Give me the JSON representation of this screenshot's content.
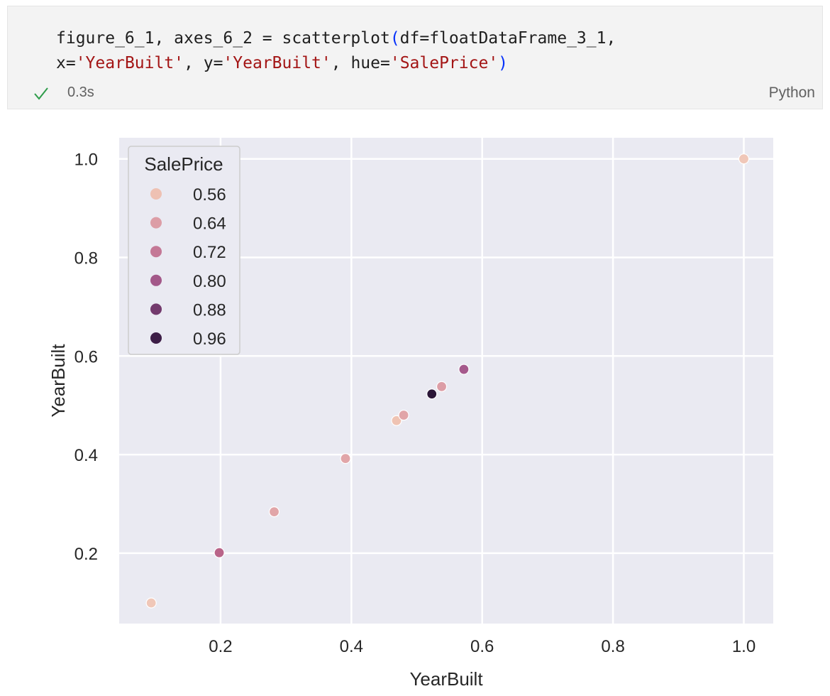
{
  "cell": {
    "code": {
      "line1": [
        {
          "t": "figure_6_1, axes_6_2 = scatterplot",
          "c": "plain"
        },
        {
          "t": "(",
          "c": "paren"
        },
        {
          "t": "df=floatDataFrame_3_1,",
          "c": "plain"
        }
      ],
      "line2": [
        {
          "t": "x=",
          "c": "plain"
        },
        {
          "t": "'YearBuilt'",
          "c": "str"
        },
        {
          "t": ", y=",
          "c": "plain"
        },
        {
          "t": "'YearBuilt'",
          "c": "str"
        },
        {
          "t": ", hue=",
          "c": "plain"
        },
        {
          "t": "'SalePrice'",
          "c": "str"
        },
        {
          "t": ")",
          "c": "paren"
        }
      ]
    },
    "status_icon": "check-icon",
    "execution_time": "0.3s",
    "language": "Python"
  },
  "colors": {
    "code_string": "#a31515",
    "code_paren": "#0431fa",
    "status_check": "#2e9c4a",
    "plot_background": "#eaeaf2",
    "grid": "#ffffff"
  },
  "chart_data": {
    "type": "scatter",
    "title": "",
    "xlabel": "YearBuilt",
    "ylabel": "YearBuilt",
    "xlim": [
      0.045,
      1.045
    ],
    "ylim": [
      0.0572,
      1.0428
    ],
    "xticks": [
      0.2,
      0.4,
      0.6,
      0.8,
      1.0
    ],
    "xtick_labels": [
      "0.2",
      "0.4",
      "0.6",
      "0.8",
      "1.0"
    ],
    "yticks": [
      0.2,
      0.4,
      0.6,
      0.8,
      1.0
    ],
    "ytick_labels": [
      "0.2",
      "0.4",
      "0.6",
      "0.8",
      "1.0"
    ],
    "grid": true,
    "hue": "SalePrice",
    "legend": {
      "title": "SalePrice",
      "placement": "top-left",
      "entries": [
        {
          "label": "0.56",
          "color": "#eec1b3"
        },
        {
          "label": "0.64",
          "color": "#dc9da6"
        },
        {
          "label": "0.72",
          "color": "#c47896"
        },
        {
          "label": "0.80",
          "color": "#a35889"
        },
        {
          "label": "0.88",
          "color": "#733a6d"
        },
        {
          "label": "0.96",
          "color": "#3d1e47"
        }
      ]
    },
    "points": [
      {
        "x": 0.094,
        "y": 0.099,
        "hue": 0.55,
        "color": "#f0c7b8"
      },
      {
        "x": 0.198,
        "y": 0.201,
        "hue": 0.74,
        "color": "#b96489"
      },
      {
        "x": 0.282,
        "y": 0.284,
        "hue": 0.62,
        "color": "#e1a5a8"
      },
      {
        "x": 0.391,
        "y": 0.392,
        "hue": 0.62,
        "color": "#e1a5a8"
      },
      {
        "x": 0.469,
        "y": 0.469,
        "hue": 0.56,
        "color": "#efc3b3"
      },
      {
        "x": 0.48,
        "y": 0.48,
        "hue": 0.62,
        "color": "#e1a5a8"
      },
      {
        "x": 0.523,
        "y": 0.523,
        "hue": 0.98,
        "color": "#2b1638"
      },
      {
        "x": 0.538,
        "y": 0.538,
        "hue": 0.63,
        "color": "#dc9da6"
      },
      {
        "x": 0.572,
        "y": 0.573,
        "hue": 0.78,
        "color": "#a5598c"
      },
      {
        "x": 1.0,
        "y": 1.0,
        "hue": 0.55,
        "color": "#f0c7b8"
      }
    ]
  }
}
